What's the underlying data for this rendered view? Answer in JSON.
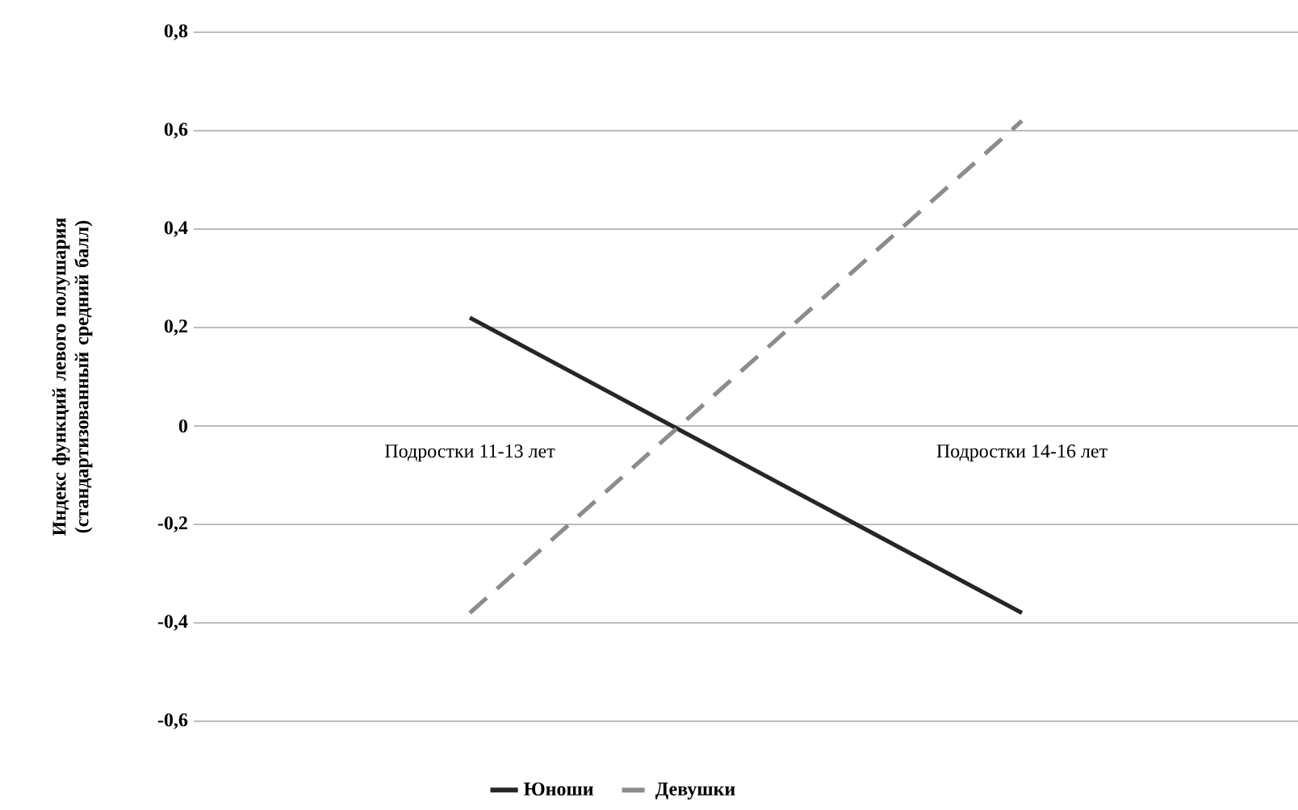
{
  "chart_data": {
    "type": "line",
    "ylabel": "Индекс функций левого полушария (стандартизованный средний балл)",
    "categories": [
      "Подростки 11-13 лет",
      "Подростки 14-16 лет"
    ],
    "series": [
      {
        "name": "Юноши",
        "color": "#262626",
        "line_style": "solid",
        "values": [
          0.22,
          -0.38
        ]
      },
      {
        "name": "Девушки",
        "color": "#8c8c8c",
        "line_style": "dashed",
        "values": [
          -0.38,
          0.62
        ]
      }
    ],
    "ylim": [
      -0.6,
      0.8
    ],
    "yticks": [
      {
        "value": -0.6,
        "label": "-0,6"
      },
      {
        "value": -0.4,
        "label": "-0,4"
      },
      {
        "value": -0.2,
        "label": "-0,2"
      },
      {
        "value": 0,
        "label": "0"
      },
      {
        "value": 0.2,
        "label": "0,2"
      },
      {
        "value": 0.4,
        "label": "0,4"
      },
      {
        "value": 0.6,
        "label": "0,6"
      },
      {
        "value": 0.8,
        "label": "0,8"
      }
    ],
    "grid": "y",
    "legend": "bottom",
    "marker": "none"
  }
}
